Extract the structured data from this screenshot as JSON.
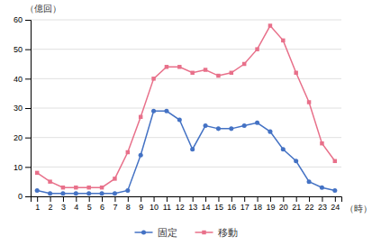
{
  "chart_data": {
    "type": "line",
    "x": [
      1,
      2,
      3,
      4,
      5,
      6,
      7,
      8,
      9,
      10,
      11,
      12,
      13,
      14,
      15,
      16,
      17,
      18,
      19,
      20,
      21,
      22,
      23,
      24
    ],
    "series": [
      {
        "name": "固定",
        "color": "#4472c4",
        "marker": "circle",
        "values": [
          2,
          1,
          1,
          1,
          1,
          1,
          1,
          2,
          14,
          29,
          29,
          26,
          16,
          24,
          23,
          23,
          24,
          25,
          22,
          16,
          12,
          5,
          3,
          2
        ]
      },
      {
        "name": "移動",
        "color": "#e8708a",
        "marker": "square",
        "values": [
          8,
          5,
          3,
          3,
          3,
          3,
          6,
          15,
          27,
          40,
          44,
          44,
          42,
          43,
          41,
          42,
          45,
          50,
          58,
          53,
          42,
          32,
          18,
          12
        ]
      }
    ],
    "xlabel": "（時）",
    "ylabel": "（億回）",
    "xlim": [
      0.5,
      24.5
    ],
    "xticks": [
      1,
      2,
      3,
      4,
      5,
      6,
      7,
      8,
      9,
      10,
      11,
      12,
      13,
      14,
      15,
      16,
      17,
      18,
      19,
      20,
      21,
      22,
      23,
      24
    ],
    "ylim": [
      0,
      60
    ],
    "yticks": [
      0,
      10,
      20,
      30,
      40,
      50,
      60
    ],
    "grid": "y",
    "legend": "bottom"
  }
}
